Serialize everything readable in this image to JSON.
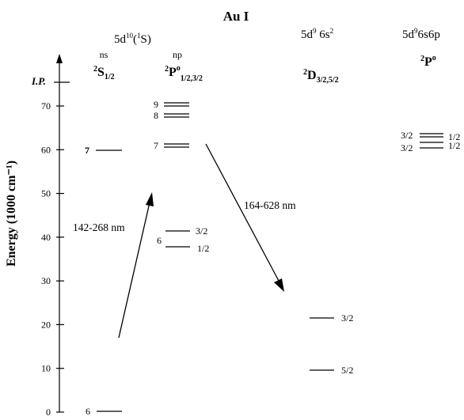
{
  "title": "Au I",
  "axis": {
    "ylabel": "Energy (1000 cm⁻¹)",
    "ip_label": "I.P.",
    "ticks": [
      "0",
      "10",
      "20",
      "30",
      "40",
      "50",
      "60",
      "70"
    ]
  },
  "columns": {
    "config1": {
      "base": "5d",
      "sup": "10",
      "paren_open": "(",
      "state_sup": "1",
      "state": "S",
      "paren_close": ")"
    },
    "ns": {
      "top": "ns",
      "mult": "2",
      "term": "S",
      "sub": "1/2"
    },
    "np": {
      "top": "np",
      "mult": "2",
      "term": "P",
      "sup": "o",
      "sub": "1/2,3/2"
    },
    "config2": {
      "base": "5d",
      "sup": "9",
      "rest": " 6s",
      "sup2": "2"
    },
    "d": {
      "mult": "2",
      "term": "D",
      "sub": "3/2,5/2"
    },
    "config3": {
      "base": "5d",
      "sup": "9",
      "rest": "6s6p"
    },
    "p": {
      "mult": "2",
      "term": "P",
      "sup": "o"
    }
  },
  "levels": {
    "s6": "6",
    "s7": "7",
    "p6": "6",
    "p6_hi": "3/2",
    "p6_lo": "1/2",
    "p7": "7",
    "p8": "8",
    "p9": "9",
    "d_hi": "3/2",
    "d_lo": "5/2",
    "p3_left_top": "3/2",
    "p3_left_bottom": "3/2",
    "p3_right_top": "1/2",
    "p3_right_bottom": "1/2"
  },
  "transitions": {
    "absorption": "142-268 nm",
    "emission": "164-628 nm"
  }
}
